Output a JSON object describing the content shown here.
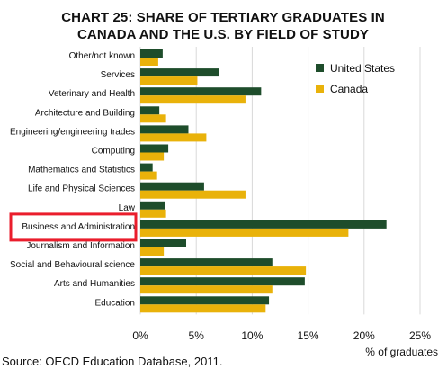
{
  "chart_data": {
    "type": "bar",
    "title": [
      "CHART 25: SHARE OF TERTIARY GRADUATES IN",
      "CANADA AND THE U.S. BY FIELD OF STUDY"
    ],
    "xlabel": "% of graduates",
    "ylabel": "",
    "xlim": [
      0,
      25
    ],
    "xticks": [
      0,
      5,
      10,
      15,
      20,
      25
    ],
    "xticklabels": [
      "0%",
      "5%",
      "10%",
      "15%",
      "20%",
      "25%"
    ],
    "categories": [
      "Other/not known",
      "Services",
      "Veterinary and Health",
      "Architecture and Building",
      "Engineering/engineering trades",
      "Computing",
      "Mathematics and Statistics",
      "Life and Physical Sciences",
      "Law",
      "Business and Administration",
      "Journalism and Information",
      "Social and Behavioural science",
      "Arts and Humanities",
      "Education"
    ],
    "series": [
      {
        "name": "United States",
        "color": "#1e4d2b",
        "values": [
          2.0,
          7.0,
          10.8,
          1.7,
          4.3,
          2.5,
          1.1,
          5.7,
          2.2,
          22.0,
          4.1,
          11.8,
          14.7,
          11.5
        ]
      },
      {
        "name": "Canada",
        "color": "#e9b20a",
        "values": [
          1.6,
          5.1,
          9.4,
          2.3,
          5.9,
          2.1,
          1.5,
          9.4,
          2.3,
          18.6,
          2.1,
          14.8,
          11.8,
          11.2
        ]
      }
    ],
    "legend": "top-right",
    "grid": true,
    "highlight": {
      "category": "Business and Administration",
      "color": "#ea1d2c"
    },
    "source": "Source: OECD Education Database, 2011."
  }
}
